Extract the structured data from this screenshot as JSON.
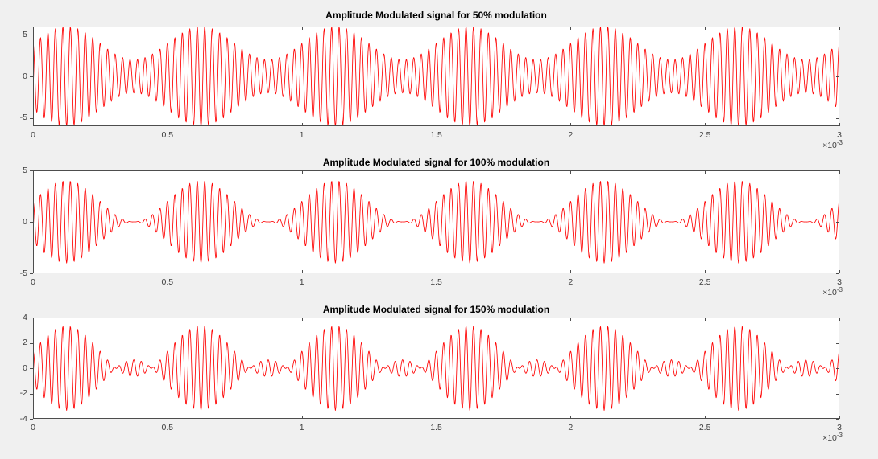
{
  "figure": {
    "background_color": "#f0f0f0",
    "plot_background_color": "#ffffff",
    "axis_color": "#4d4d4d",
    "tick_label_color": "#3d3d3d",
    "title_color": "#000000"
  },
  "chart_data": [
    {
      "type": "line",
      "title": "Amplitude Modulated signal for 50% modulation",
      "modulation_percent": 50,
      "modulation_index": 0.5,
      "carrier_amplitude": 4,
      "modulating_freq_hz": 2000,
      "carrier_freq_hz": 36000,
      "signal_formula": "y(t) = 4*(1 + 0.5*sin(2*pi*2000*t))*cos(2*pi*36000*t)",
      "line_color": "#ff0000",
      "grid": false,
      "x_range_ms": [
        0,
        3
      ],
      "ylim": [
        -6,
        6
      ],
      "yticks": [
        {
          "label": "5",
          "value": 5
        },
        {
          "label": "0",
          "value": 0
        },
        {
          "label": "-5",
          "value": -5
        }
      ],
      "xticks": [
        {
          "label": "0",
          "value": 0
        },
        {
          "label": "0.5",
          "value": 0.5
        },
        {
          "label": "1",
          "value": 1
        },
        {
          "label": "1.5",
          "value": 1.5
        },
        {
          "label": "2",
          "value": 2
        },
        {
          "label": "2.5",
          "value": 2.5
        },
        {
          "label": "3",
          "value": 3
        }
      ],
      "x_multiplier": {
        "base": "×10",
        "exp": "-3"
      }
    },
    {
      "type": "line",
      "title": "Amplitude Modulated signal for 100% modulation",
      "modulation_percent": 100,
      "modulation_index": 1.0,
      "carrier_amplitude": 2,
      "modulating_freq_hz": 2000,
      "carrier_freq_hz": 36000,
      "signal_formula": "y(t) = 2*(1 + 1.0*sin(2*pi*2000*t))*cos(2*pi*36000*t)",
      "line_color": "#ff0000",
      "grid": false,
      "x_range_ms": [
        0,
        3
      ],
      "ylim": [
        -5,
        5
      ],
      "yticks": [
        {
          "label": "5",
          "value": 5
        },
        {
          "label": "0",
          "value": 0
        },
        {
          "label": "-5",
          "value": -5
        }
      ],
      "xticks": [
        {
          "label": "0",
          "value": 0
        },
        {
          "label": "0.5",
          "value": 0.5
        },
        {
          "label": "1",
          "value": 1
        },
        {
          "label": "1.5",
          "value": 1.5
        },
        {
          "label": "2",
          "value": 2
        },
        {
          "label": "2.5",
          "value": 2.5
        },
        {
          "label": "3",
          "value": 3
        }
      ],
      "x_multiplier": {
        "base": "×10",
        "exp": "-3"
      }
    },
    {
      "type": "line",
      "title": "Amplitude Modulated signal for 150% modulation",
      "modulation_percent": 150,
      "modulation_index": 1.5,
      "carrier_amplitude": 1.3333,
      "modulating_freq_hz": 2000,
      "carrier_freq_hz": 36000,
      "signal_formula": "y(t) = 1.3333*(1 + 1.5*sin(2*pi*2000*t))*cos(2*pi*36000*t)",
      "line_color": "#ff0000",
      "grid": false,
      "x_range_ms": [
        0,
        3
      ],
      "ylim": [
        -4,
        4
      ],
      "yticks": [
        {
          "label": "4",
          "value": 4
        },
        {
          "label": "2",
          "value": 2
        },
        {
          "label": "0",
          "value": 0
        },
        {
          "label": "-2",
          "value": -2
        },
        {
          "label": "-4",
          "value": -4
        }
      ],
      "xticks": [
        {
          "label": "0",
          "value": 0
        },
        {
          "label": "0.5",
          "value": 0.5
        },
        {
          "label": "1",
          "value": 1
        },
        {
          "label": "1.5",
          "value": 1.5
        },
        {
          "label": "2",
          "value": 2
        },
        {
          "label": "2.5",
          "value": 2.5
        },
        {
          "label": "3",
          "value": 3
        }
      ],
      "x_multiplier": {
        "base": "×10",
        "exp": "-3"
      }
    }
  ]
}
